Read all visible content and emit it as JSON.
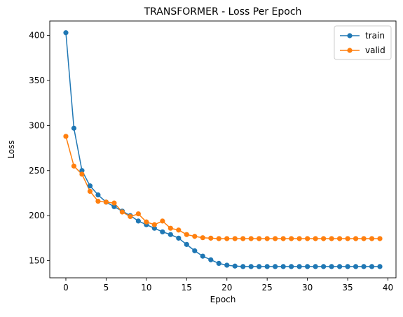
{
  "chart_data": {
    "type": "line",
    "title": "TRANSFORMER - Loss Per Epoch",
    "xlabel": "Epoch",
    "ylabel": "Loss",
    "xlim": [
      -2,
      41
    ],
    "ylim": [
      131,
      416
    ],
    "xticks": [
      0,
      5,
      10,
      15,
      20,
      25,
      30,
      35,
      40
    ],
    "yticks": [
      150,
      200,
      250,
      300,
      350,
      400
    ],
    "grid": false,
    "legend_position": "top-right",
    "x": [
      0,
      1,
      2,
      3,
      4,
      5,
      6,
      7,
      8,
      9,
      10,
      11,
      12,
      13,
      14,
      15,
      16,
      17,
      18,
      19,
      20,
      21,
      22,
      23,
      24,
      25,
      26,
      27,
      28,
      29,
      30,
      31,
      32,
      33,
      34,
      35,
      36,
      37,
      38,
      39
    ],
    "series": [
      {
        "name": "train",
        "color": "#1f77b4",
        "values": [
          403,
          297,
          250,
          233,
          223,
          215,
          210,
          205,
          200,
          194,
          190,
          186,
          182,
          179,
          175,
          168,
          161,
          155,
          151,
          147,
          145,
          144,
          143.5,
          143.5,
          143.5,
          143.5,
          143.5,
          143.5,
          143.5,
          143.5,
          143.5,
          143.5,
          143.5,
          143.5,
          143.5,
          143.5,
          143.5,
          143.5,
          143.5,
          143.5
        ]
      },
      {
        "name": "valid",
        "color": "#ff7f0e",
        "values": [
          288,
          255,
          246,
          227,
          216,
          215,
          214,
          204,
          199,
          202,
          193,
          190,
          194,
          186,
          184,
          179,
          177,
          175.5,
          175,
          174.5,
          174.5,
          174.5,
          174.5,
          174.5,
          174.5,
          174.5,
          174.5,
          174.5,
          174.5,
          174.5,
          174.5,
          174.5,
          174.5,
          174.5,
          174.5,
          174.5,
          174.5,
          174.5,
          174.5,
          174.5
        ]
      }
    ]
  }
}
